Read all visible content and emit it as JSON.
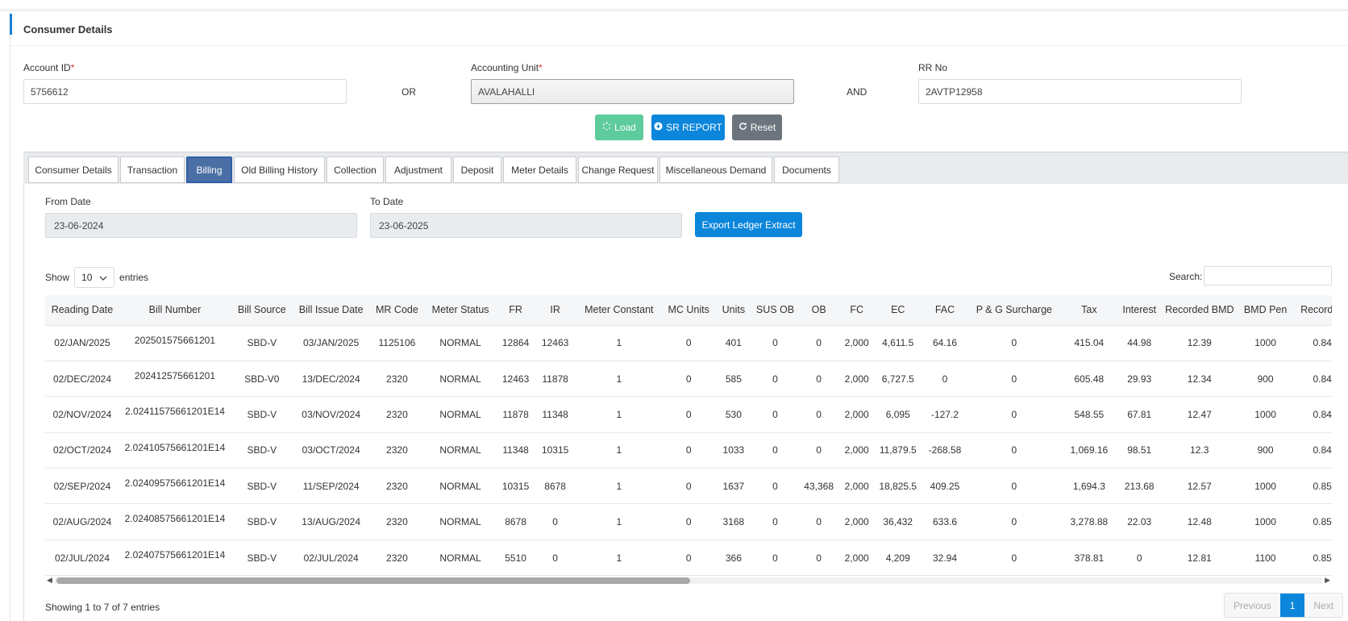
{
  "panel": {
    "title": "Consumer Details"
  },
  "form": {
    "account_id_label": "Account ID",
    "account_id_value": "5756612",
    "or_text": "OR",
    "accounting_unit_label": "Accounting Unit",
    "accounting_unit_value": "AVALAHALLI",
    "and_text": "AND",
    "rr_no_label": "RR No",
    "rr_no_value": "2AVTP12958",
    "required_mark": "*"
  },
  "actions": {
    "load_label": "Load",
    "sr_report_label": "SR REPORT",
    "reset_label": "Reset"
  },
  "tabs": [
    {
      "label": "Consumer Details"
    },
    {
      "label": "Transaction"
    },
    {
      "label": "Billing",
      "active": true
    },
    {
      "label": "Old Billing History"
    },
    {
      "label": "Collection"
    },
    {
      "label": "Adjustment"
    },
    {
      "label": "Deposit"
    },
    {
      "label": "Meter Details"
    },
    {
      "label": "Change Request"
    },
    {
      "label": "Miscellaneous Demand"
    },
    {
      "label": "Documents"
    }
  ],
  "billing": {
    "from_date_label": "From Date",
    "from_date_value": "23-06-2024",
    "to_date_label": "To Date",
    "to_date_value": "23-06-2025",
    "export_label": "Export Ledger Extract",
    "show_label": "Show",
    "entries_value": "10",
    "entries_label": "entries",
    "search_label": "Search:"
  },
  "table": {
    "columns": [
      "Reading Date",
      "Bill Number",
      "Bill Source",
      "Bill Issue Date",
      "MR Code",
      "Meter Status",
      "FR",
      "IR",
      "Meter Constant",
      "MC Units",
      "Units",
      "SUS OB",
      "OB",
      "FC",
      "EC",
      "FAC",
      "P & G Surcharge",
      "Tax",
      "Interest",
      "Recorded BMD",
      "BMD Pen",
      "Recorded"
    ],
    "rows": [
      [
        "02/JAN/2025",
        "202501575661201",
        "SBD-V",
        "03/JAN/2025",
        "1125106",
        "NORMAL",
        "12864",
        "12463",
        "1",
        "0",
        "401",
        "0",
        "0",
        "2,000",
        "4,611.5",
        "64.16",
        "0",
        "415.04",
        "44.98",
        "12.39",
        "1000",
        "0.84"
      ],
      [
        "02/DEC/2024",
        "202412575661201",
        "SBD-V0",
        "13/DEC/2024",
        "2320",
        "NORMAL",
        "12463",
        "11878",
        "1",
        "0",
        "585",
        "0",
        "0",
        "2,000",
        "6,727.5",
        "0",
        "0",
        "605.48",
        "29.93",
        "12.34",
        "900",
        "0.84"
      ],
      [
        "02/NOV/2024",
        "2.02411575661201E14",
        "SBD-V",
        "03/NOV/2024",
        "2320",
        "NORMAL",
        "11878",
        "11348",
        "1",
        "0",
        "530",
        "0",
        "0",
        "2,000",
        "6,095",
        "-127.2",
        "0",
        "548.55",
        "67.81",
        "12.47",
        "1000",
        "0.84"
      ],
      [
        "02/OCT/2024",
        "2.02410575661201E14",
        "SBD-V",
        "03/OCT/2024",
        "2320",
        "NORMAL",
        "11348",
        "10315",
        "1",
        "0",
        "1033",
        "0",
        "0",
        "2,000",
        "11,879.5",
        "-268.58",
        "0",
        "1,069.16",
        "98.51",
        "12.3",
        "900",
        "0.84"
      ],
      [
        "02/SEP/2024",
        "2.02409575661201E14",
        "SBD-V",
        "11/SEP/2024",
        "2320",
        "NORMAL",
        "10315",
        "8678",
        "1",
        "0",
        "1637",
        "0",
        "43,368",
        "2,000",
        "18,825.5",
        "409.25",
        "0",
        "1,694.3",
        "213.68",
        "12.57",
        "1000",
        "0.85"
      ],
      [
        "02/AUG/2024",
        "2.02408575661201E14",
        "SBD-V",
        "13/AUG/2024",
        "2320",
        "NORMAL",
        "8678",
        "0",
        "1",
        "0",
        "3168",
        "0",
        "0",
        "2,000",
        "36,432",
        "633.6",
        "0",
        "3,278.88",
        "22.03",
        "12.48",
        "1000",
        "0.85"
      ],
      [
        "02/JUL/2024",
        "2.02407575661201E14",
        "SBD-V",
        "02/JUL/2024",
        "2320",
        "NORMAL",
        "5510",
        "0",
        "1",
        "0",
        "366",
        "0",
        "0",
        "2,000",
        "4,209",
        "32.94",
        "0",
        "378.81",
        "0",
        "12.81",
        "1100",
        "0.85"
      ]
    ]
  },
  "footer": {
    "info": "Showing 1 to 7 of 7 entries",
    "previous_label": "Previous",
    "current_page": "1",
    "next_label": "Next"
  }
}
